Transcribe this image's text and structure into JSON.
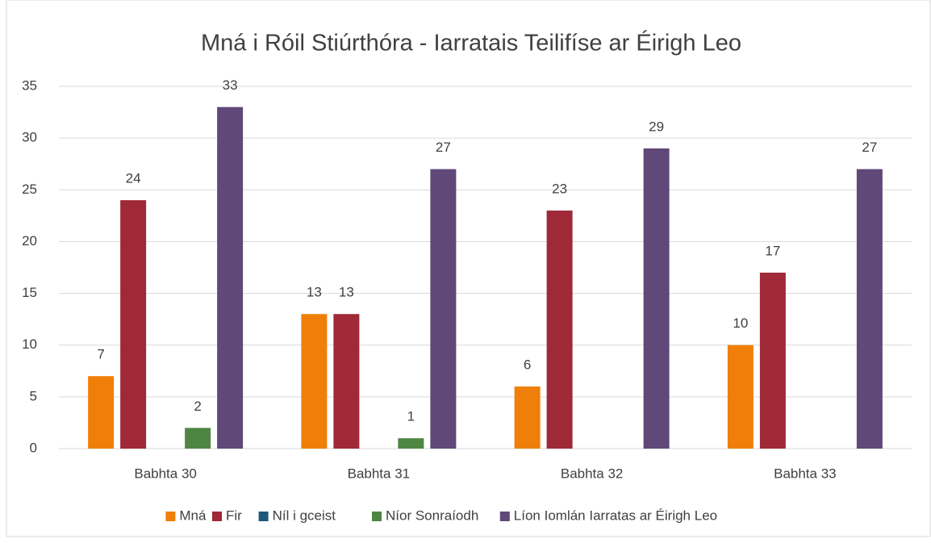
{
  "chart_data": {
    "type": "bar",
    "title": "Mná i Róil Stiúrthóra - Iarratais Teilifíse ar Éirigh Leo",
    "categories": [
      "Babhta 30",
      "Babhta 31",
      "Babhta 32",
      "Babhta 33"
    ],
    "series": [
      {
        "name": "Mná",
        "color": "#f07f09",
        "values": [
          7,
          13,
          6,
          10
        ]
      },
      {
        "name": "Fir",
        "color": "#9f2936",
        "values": [
          24,
          13,
          23,
          17
        ]
      },
      {
        "name": "Níl i gceist",
        "color": "#1b587c",
        "values": [
          null,
          null,
          null,
          null
        ]
      },
      {
        "name": "Níor Sonraíodh",
        "color": "#4e8542",
        "values": [
          2,
          1,
          null,
          null
        ]
      },
      {
        "name": "Líon Iomlán Iarratas ar Éirigh Leo",
        "color": "#604878",
        "values": [
          33,
          27,
          29,
          27
        ]
      }
    ],
    "ylim": [
      0,
      35
    ],
    "yticks": [
      0,
      5,
      10,
      15,
      20,
      25,
      30,
      35
    ],
    "grid": true,
    "legend": "bottom"
  }
}
